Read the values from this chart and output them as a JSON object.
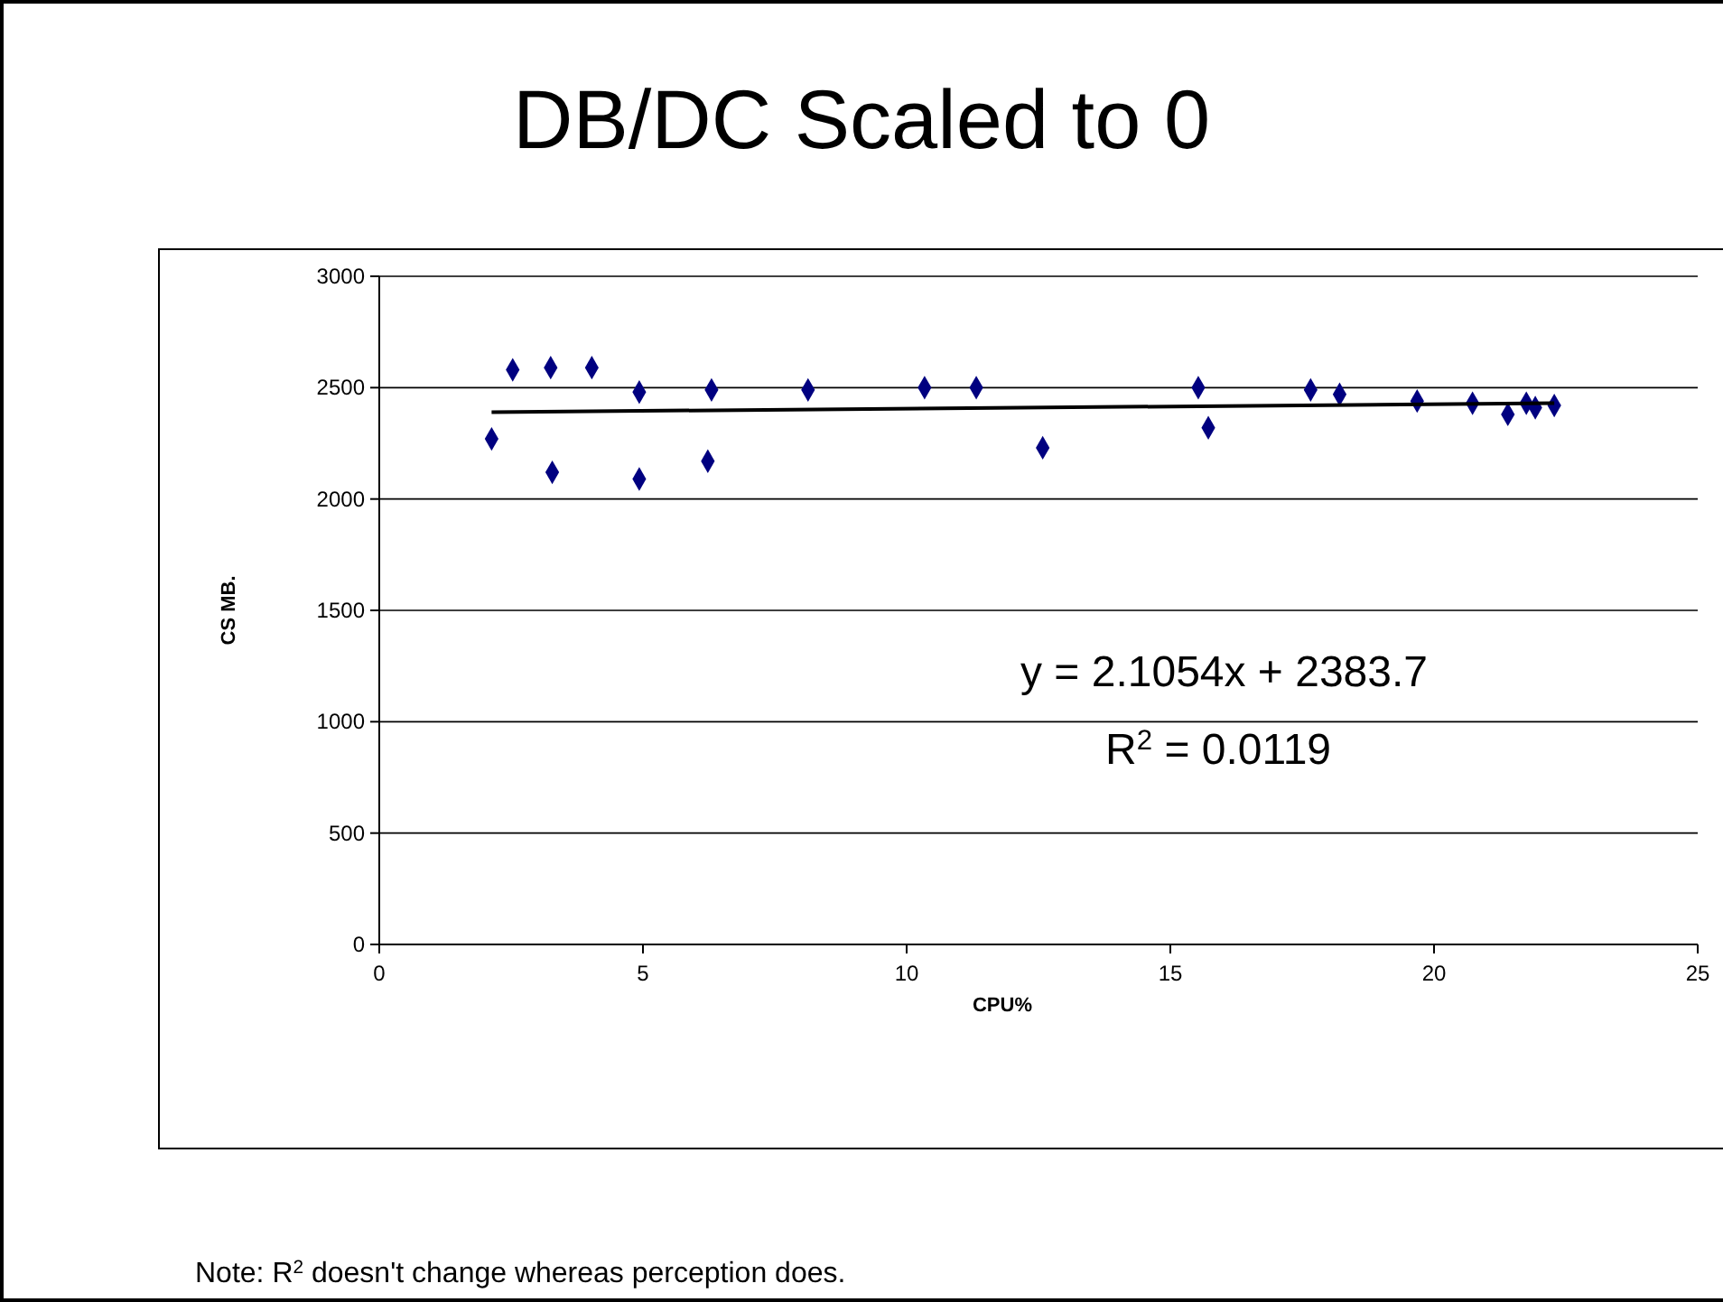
{
  "chart_data": {
    "type": "scatter",
    "title": "DB/DC Scaled to 0",
    "xlabel": "CPU%",
    "ylabel": "CS MB.",
    "xlim": [
      0,
      25
    ],
    "xticks": [
      0,
      5,
      10,
      15,
      20,
      25
    ],
    "ylim": [
      0,
      3000
    ],
    "yticks": [
      0,
      500,
      1000,
      1500,
      2000,
      2500,
      3000
    ],
    "grid": "y",
    "marker": "diamond",
    "series": [
      {
        "color": "#000080",
        "x": [
          2.13,
          2.53,
          3.25,
          3.28,
          4.03,
          4.93,
          4.93,
          6.3,
          6.23,
          8.13,
          10.34,
          11.32,
          12.58,
          15.53,
          15.72,
          17.66,
          18.21,
          19.68,
          20.73,
          21.4,
          21.75,
          21.92,
          22.28
        ],
        "values": [
          2270,
          2580,
          2590,
          2120,
          2590,
          2480,
          2090,
          2490,
          2170,
          2490,
          2500,
          2500,
          2230,
          2500,
          2320,
          2490,
          2470,
          2440,
          2430,
          2380,
          2430,
          2410,
          2420
        ]
      },
      {
        "type": "line",
        "color": "#000000",
        "marker": "none",
        "x": [
          2.13,
          22.28
        ],
        "values": [
          2390,
          2430
        ]
      }
    ],
    "annotations": [
      {
        "text": "y = 2.1054x + 2383.7"
      },
      {
        "text": "R$^{2}$ = 0.0119"
      },
      {
        "text": "Note: R$^{2}$ doesn't change whereas perception does."
      }
    ]
  }
}
